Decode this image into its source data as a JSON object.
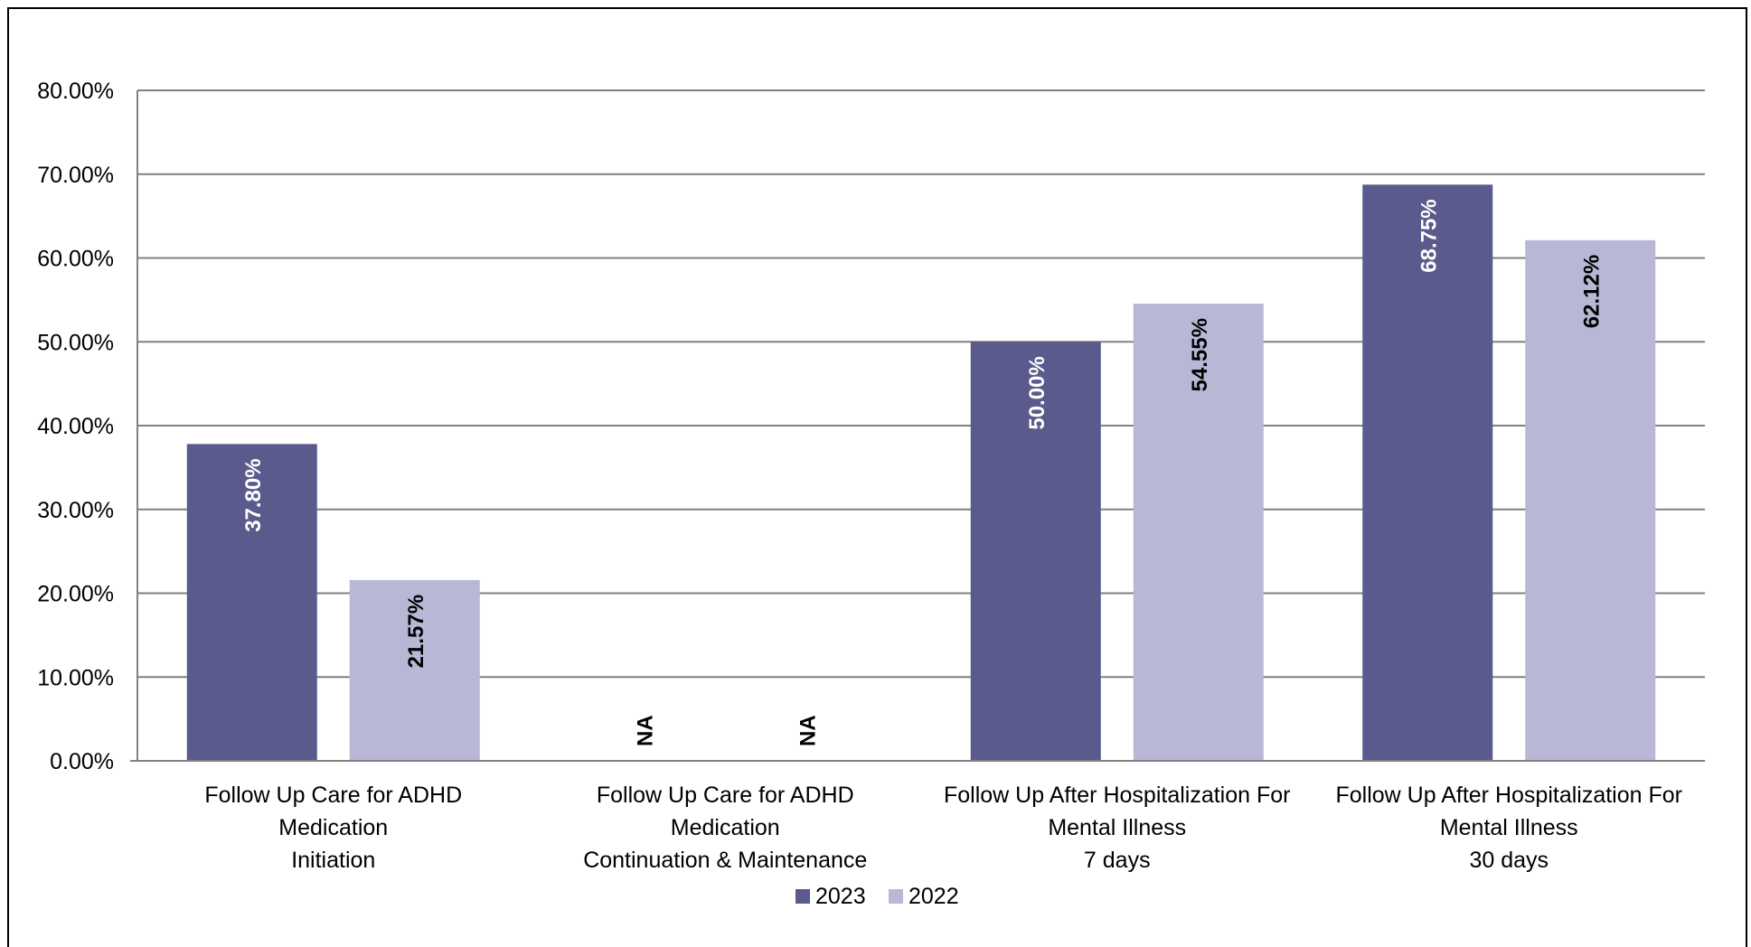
{
  "chart_data": {
    "type": "bar",
    "categories": [
      [
        "Follow Up Care for ADHD",
        "Medication",
        "Initiation"
      ],
      [
        "Follow Up Care for ADHD",
        "Medication",
        "Continuation & Maintenance"
      ],
      [
        "Follow Up After Hospitalization For",
        "Mental Illness",
        "7 days"
      ],
      [
        "Follow Up After Hospitalization For",
        "Mental Illness",
        "30 days"
      ]
    ],
    "series": [
      {
        "name": "2023",
        "color": "#5a5a8c",
        "values": [
          37.8,
          null,
          50.0,
          68.75
        ],
        "labels": [
          "37.80%",
          "NA",
          "50.00%",
          "68.75%"
        ]
      },
      {
        "name": "2022",
        "color": "#b8b8d6",
        "values": [
          21.57,
          null,
          54.55,
          62.12
        ],
        "labels": [
          "21.57%",
          "NA",
          "54.55%",
          "62.12%"
        ]
      }
    ],
    "ylim": [
      0,
      80
    ],
    "yticks": [
      "0.00%",
      "10.00%",
      "20.00%",
      "30.00%",
      "40.00%",
      "50.00%",
      "60.00%",
      "70.00%",
      "80.00%"
    ],
    "grid": true,
    "legend_position": "bottom-center"
  }
}
